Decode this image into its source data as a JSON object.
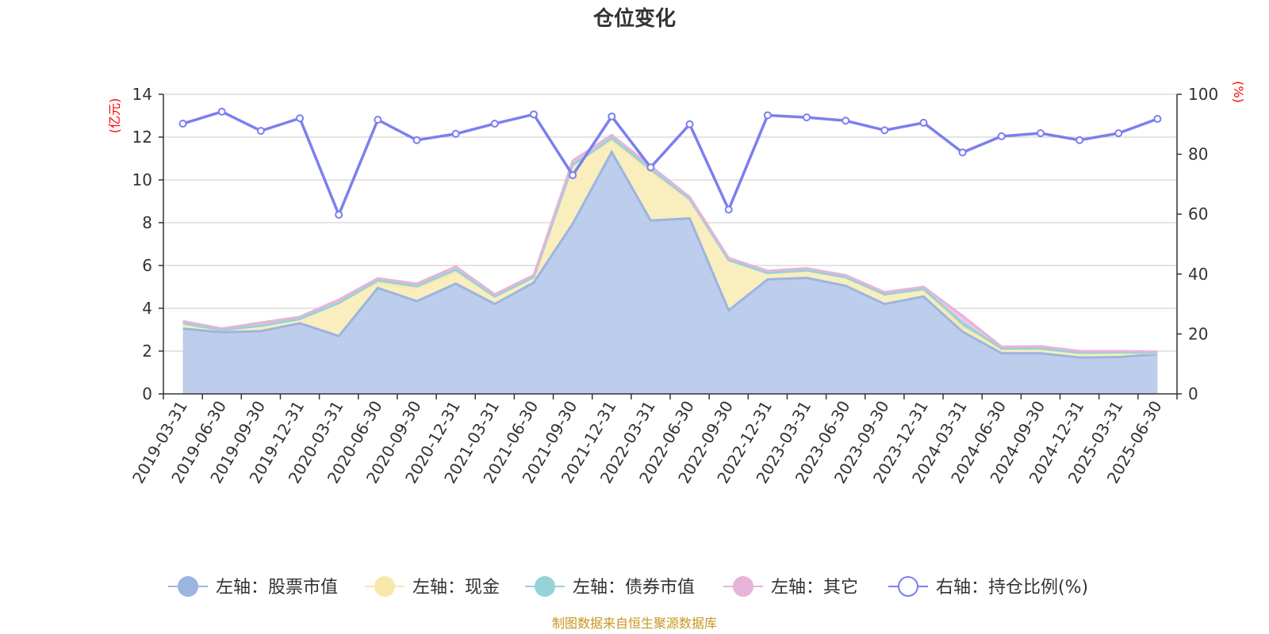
{
  "chart_data": {
    "type": "area",
    "title": "仓位变化",
    "left_axis_unit": "(亿元)",
    "right_axis_unit": "(%)",
    "left_ylim": [
      0,
      14
    ],
    "left_yticks": [
      0,
      2,
      4,
      6,
      8,
      10,
      12,
      14
    ],
    "right_ylim": [
      0,
      100
    ],
    "right_yticks": [
      0,
      20,
      40,
      60,
      80,
      100
    ],
    "grid": true,
    "legend_position": "bottom",
    "categories": [
      "2019-03-31",
      "2019-06-30",
      "2019-09-30",
      "2019-12-31",
      "2020-03-31",
      "2020-06-30",
      "2020-09-30",
      "2020-12-31",
      "2021-03-31",
      "2021-06-30",
      "2021-09-30",
      "2021-12-31",
      "2022-03-31",
      "2022-06-30",
      "2022-09-30",
      "2022-12-31",
      "2023-03-31",
      "2023-06-30",
      "2023-09-30",
      "2023-12-31",
      "2024-03-31",
      "2024-06-30",
      "2024-09-30",
      "2024-12-31",
      "2025-03-31",
      "2025-06-30"
    ],
    "series": [
      {
        "name": "左轴：股票市值",
        "axis": "left",
        "kind": "stacked-area",
        "color": "#9bb5e0",
        "fill": "#b8cbea",
        "values": [
          3.05,
          2.88,
          2.93,
          3.3,
          2.7,
          4.95,
          4.33,
          5.15,
          4.2,
          5.2,
          7.95,
          11.3,
          8.1,
          8.2,
          3.9,
          5.35,
          5.42,
          5.05,
          4.2,
          4.55,
          2.9,
          1.9,
          1.9,
          1.7,
          1.72,
          1.85
        ]
      },
      {
        "name": "左轴：现金",
        "axis": "left",
        "kind": "stacked-area",
        "color": "#f8e8a8",
        "fill": "#faecbb",
        "values": [
          0.2,
          0.1,
          0.25,
          0.2,
          1.55,
          0.25,
          0.6,
          0.55,
          0.35,
          0.25,
          2.75,
          0.55,
          2.3,
          0.9,
          2.35,
          0.3,
          0.35,
          0.4,
          0.45,
          0.3,
          0.2,
          0.2,
          0.2,
          0.2,
          0.2,
          0.05
        ]
      },
      {
        "name": "左轴：债券市值",
        "axis": "left",
        "kind": "stacked-area",
        "color": "#95d3d8",
        "fill": "#a6dadc",
        "values": [
          0.05,
          0.0,
          0.0,
          0.0,
          0.0,
          0.1,
          0.1,
          0.1,
          0.0,
          0.0,
          0.0,
          0.1,
          0.1,
          0.0,
          0.0,
          0.0,
          0.0,
          0.0,
          0.0,
          0.05,
          0.2,
          0.02,
          0.02,
          0.02,
          0.02,
          0.02
        ]
      },
      {
        "name": "左轴：其它",
        "axis": "left",
        "kind": "stacked-area",
        "color": "#e6b4d8",
        "fill": "#ebc2e2",
        "values": [
          0.1,
          0.07,
          0.15,
          0.1,
          0.15,
          0.1,
          0.12,
          0.15,
          0.1,
          0.1,
          0.2,
          0.15,
          0.15,
          0.1,
          0.1,
          0.1,
          0.1,
          0.1,
          0.1,
          0.1,
          0.35,
          0.08,
          0.1,
          0.08,
          0.06,
          0.05
        ]
      },
      {
        "name": "右轴：持仓比例(%)",
        "axis": "right",
        "kind": "line",
        "color": "#7b7ff0",
        "values": [
          90.2,
          94.2,
          87.8,
          92.0,
          59.8,
          91.5,
          84.7,
          86.8,
          90.2,
          93.3,
          73.0,
          92.6,
          75.6,
          90.0,
          61.5,
          93.0,
          92.3,
          91.2,
          88.0,
          90.5,
          80.6,
          86.0,
          87.0,
          84.7,
          87.0,
          91.8
        ]
      }
    ]
  },
  "source_text": "制图数据来自恒生聚源数据库"
}
